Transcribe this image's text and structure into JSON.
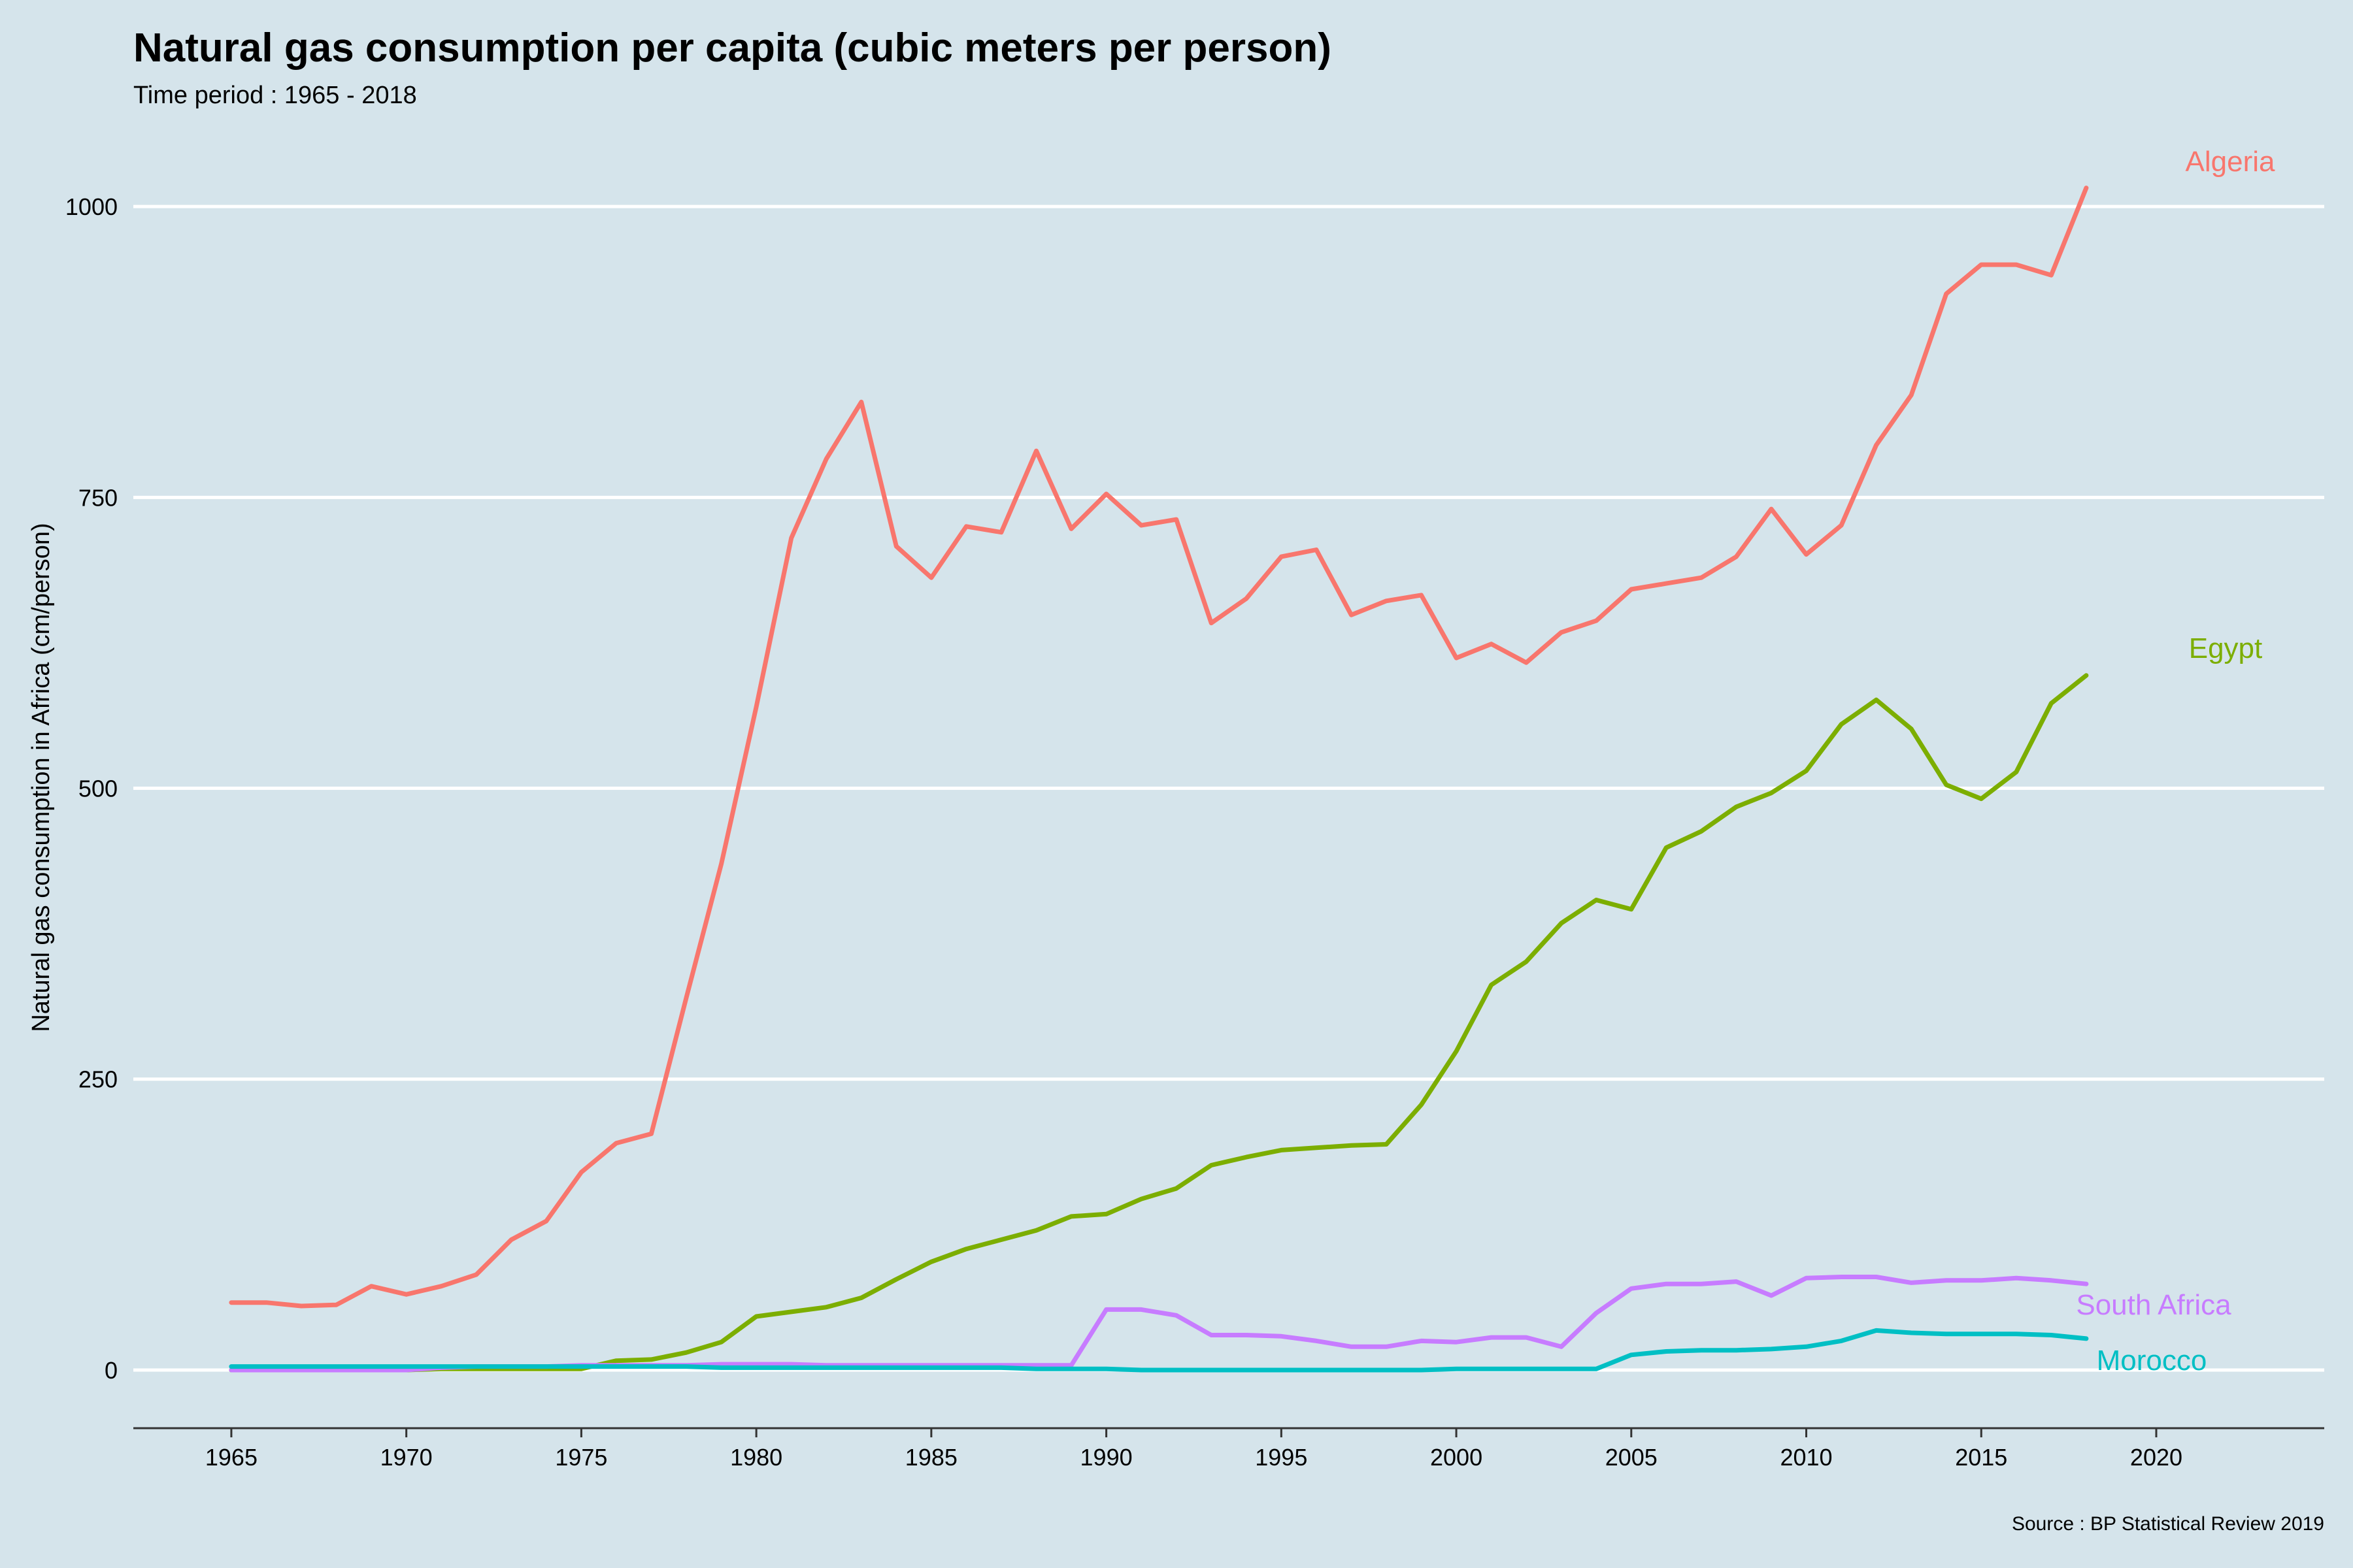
{
  "chart_data": {
    "type": "line",
    "title": "Natural gas consumption per capita (cubic meters per person)",
    "subtitle": "Time period : 1965 - 2018",
    "ylabel": "Natural gas consumption in Africa (cm/person)",
    "xlabel": "",
    "caption": "Source : BP Statistical Review 2019",
    "xlim": [
      1962.2,
      2024.8
    ],
    "ylim": [
      -50,
      1068
    ],
    "x_ticks": [
      1965,
      1970,
      1975,
      1980,
      1985,
      1990,
      1995,
      2000,
      2005,
      2010,
      2015,
      2020
    ],
    "y_ticks": [
      0,
      250,
      500,
      750,
      1000
    ],
    "grid": {
      "horizontal": true,
      "vertical": false
    },
    "legend": "direct labels at right end of lines",
    "x": [
      1965,
      1966,
      1967,
      1968,
      1969,
      1970,
      1971,
      1972,
      1973,
      1974,
      1975,
      1976,
      1977,
      1978,
      1979,
      1980,
      1981,
      1982,
      1983,
      1984,
      1985,
      1986,
      1987,
      1988,
      1989,
      1990,
      1991,
      1992,
      1993,
      1994,
      1995,
      1996,
      1997,
      1998,
      1999,
      2000,
      2001,
      2002,
      2003,
      2004,
      2005,
      2006,
      2007,
      2008,
      2009,
      2010,
      2011,
      2012,
      2013,
      2014,
      2015,
      2016,
      2017,
      2018
    ],
    "series": [
      {
        "name": "Algeria",
        "color": "#f8766d",
        "values": [
          58,
          58,
          55,
          56,
          72,
          65,
          72,
          82,
          112,
          128,
          170,
          195,
          203,
          320,
          435,
          570,
          715,
          783,
          832,
          708,
          681,
          725,
          720,
          790,
          723,
          753,
          726,
          731,
          642,
          663,
          699,
          705,
          649,
          661,
          666,
          612,
          624,
          608,
          634,
          644,
          671,
          676,
          681,
          699,
          740,
          701,
          726,
          795,
          838,
          925,
          950,
          950,
          941,
          1016
        ]
      },
      {
        "name": "Egypt",
        "color": "#7cae00",
        "values": [
          0,
          0,
          0,
          0,
          0,
          0,
          1,
          1,
          1,
          1,
          1,
          8,
          9,
          15,
          24,
          46,
          50,
          54,
          62,
          78,
          93,
          104,
          112,
          120,
          132,
          134,
          147,
          156,
          176,
          183,
          189,
          191,
          193,
          194,
          228,
          274,
          331,
          351,
          384,
          404,
          396,
          449,
          463,
          484,
          496,
          515,
          555,
          576,
          551,
          503,
          491,
          514,
          573,
          597
        ]
      },
      {
        "name": "South Africa",
        "color": "#c77cff",
        "values": [
          0,
          0,
          0,
          0,
          0,
          0,
          2,
          3,
          3,
          3,
          4,
          4,
          4,
          4,
          5,
          5,
          5,
          4,
          4,
          4,
          4,
          4,
          4,
          4,
          4,
          52,
          52,
          47,
          30,
          30,
          29,
          25,
          20,
          20,
          25,
          24,
          28,
          28,
          20,
          49,
          70,
          74,
          74,
          76,
          64,
          79,
          80,
          80,
          75,
          77,
          77,
          79,
          77,
          74
        ]
      },
      {
        "name": "Morocco",
        "color": "#00bfc4",
        "values": [
          3,
          3,
          3,
          3,
          3,
          3,
          3,
          3,
          3,
          3,
          3,
          3,
          3,
          3,
          2,
          2,
          2,
          2,
          2,
          2,
          2,
          2,
          2,
          1,
          1,
          1,
          0,
          0,
          0,
          0,
          0,
          0,
          0,
          0,
          0,
          1,
          1,
          1,
          1,
          1,
          13,
          16,
          17,
          17,
          18,
          20,
          25,
          34,
          32,
          31,
          31,
          31,
          30,
          27
        ]
      }
    ]
  }
}
